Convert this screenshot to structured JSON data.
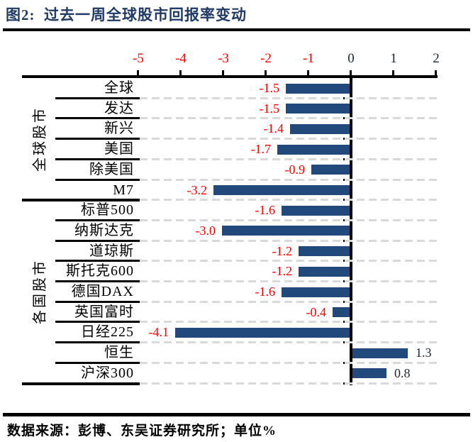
{
  "title": "图2:  过去一周全球股市回报率变动",
  "footer": {
    "source": "数据来源：彭博、东吴证券研究所；单位%"
  },
  "chart_data": {
    "type": "bar",
    "orientation": "horizontal",
    "title": "过去一周全球股市回报率变动",
    "unit": "%",
    "xlim": [
      -5,
      2
    ],
    "x_ticks": [
      "-5",
      "-4",
      "-3",
      "-2",
      "-1",
      "0",
      "1",
      "2"
    ],
    "grid": "dashed-horizontal",
    "groups": [
      {
        "name": "全球股市",
        "rows": [
          {
            "label": "全球",
            "value": -1.5,
            "display": "-1.5"
          },
          {
            "label": "发达",
            "value": -1.5,
            "display": "-1.5"
          },
          {
            "label": "新兴",
            "value": -1.4,
            "display": "-1.4"
          },
          {
            "label": "美国",
            "value": -1.7,
            "display": "-1.7"
          },
          {
            "label": "除美国",
            "value": -0.9,
            "display": "-0.9"
          },
          {
            "label": "M7",
            "value": -3.2,
            "display": "-3.2"
          }
        ]
      },
      {
        "name": "各国股市",
        "rows": [
          {
            "label": "标普500",
            "value": -1.6,
            "display": "-1.6"
          },
          {
            "label": "纳斯达克",
            "value": -3.0,
            "display": "-3.0"
          },
          {
            "label": "道琼斯",
            "value": -1.2,
            "display": "-1.2"
          },
          {
            "label": "斯托克600",
            "value": -1.2,
            "display": "-1.2"
          },
          {
            "label": "德国DAX",
            "value": -1.6,
            "display": "-1.6"
          },
          {
            "label": "英国富时",
            "value": -0.4,
            "display": "-0.4"
          },
          {
            "label": "日经225",
            "value": -4.1,
            "display": "-4.1"
          },
          {
            "label": "恒生",
            "value": 1.3,
            "display": "1.3"
          },
          {
            "label": "沪深300",
            "value": 0.8,
            "display": "0.8"
          }
        ]
      }
    ],
    "colors": {
      "bar": "#21497B",
      "negative_value_label": "#FF0000",
      "positive_value_label": "#1B2430",
      "axis_tick_negative": "#FF0000",
      "axis_tick_positive": "#1B2430",
      "grid_dash": "#D9D9D9",
      "separator": "#000000",
      "title": "#203A66"
    }
  }
}
